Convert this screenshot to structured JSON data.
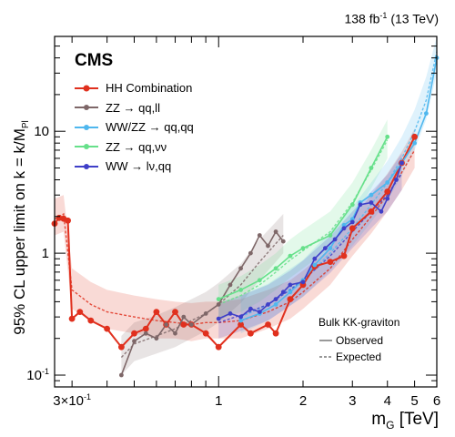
{
  "header": {
    "luminosity": "138 fb",
    "lumi_exponent": "-1",
    "energy": "(13 TeV)"
  },
  "brand": "CMS",
  "axis_labels": {
    "y_main": "95% CL upper limit on k",
    "y_tilde": "~",
    "y_rest": " = k/M",
    "y_sub": "Pl",
    "x_main": "m",
    "x_sub": "G",
    "x_unit": " [TeV]"
  },
  "y_ticks": [
    {
      "value": 0.1,
      "label": "10",
      "exp": "-1"
    },
    {
      "value": 1,
      "label": "1",
      "exp": ""
    },
    {
      "value": 10,
      "label": "10",
      "exp": ""
    }
  ],
  "x_ticks": [
    {
      "value": 0.3,
      "label": "3×10",
      "exp": "-1"
    },
    {
      "value": 1,
      "label": "1",
      "exp": ""
    },
    {
      "value": 2,
      "label": "2",
      "exp": ""
    },
    {
      "value": 3,
      "label": "3",
      "exp": ""
    },
    {
      "value": 4,
      "label": "4",
      "exp": ""
    },
    {
      "value": 5,
      "label": "5",
      "exp": ""
    },
    {
      "value": 6,
      "label": "6",
      "exp": ""
    }
  ],
  "legend": {
    "entries": [
      {
        "label": "HH Combination",
        "color": "#e0301e",
        "marker": true
      },
      {
        "label": "ZZ → qq,ll",
        "color": "#7e6768",
        "marker": true
      },
      {
        "label": "WW/ZZ → qq,qq",
        "color": "#4fb7ee",
        "marker": true
      },
      {
        "label": "ZZ → qq,νν",
        "color": "#66e08a",
        "marker": true
      },
      {
        "label": "WW → lν,qq",
        "color": "#3f3fc8",
        "marker": true
      }
    ]
  },
  "bulk_legend": {
    "title": "Bulk KK-graviton",
    "observed": "Observed",
    "expected": "Expected"
  },
  "chart_data": {
    "type": "line",
    "xscale": "log",
    "yscale": "log",
    "xlim": [
      0.26,
      6.0
    ],
    "ylim": [
      0.08,
      60
    ],
    "series": [
      {
        "name": "HH Combination",
        "color": "#e0301e",
        "observed": [
          [
            0.26,
            1.75
          ],
          [
            0.27,
            1.95
          ],
          [
            0.28,
            1.92
          ],
          [
            0.29,
            1.85
          ],
          [
            0.3,
            0.29
          ],
          [
            0.32,
            0.33
          ],
          [
            0.35,
            0.28
          ],
          [
            0.4,
            0.24
          ],
          [
            0.45,
            0.17
          ],
          [
            0.5,
            0.22
          ],
          [
            0.55,
            0.24
          ],
          [
            0.6,
            0.33
          ],
          [
            0.65,
            0.26
          ],
          [
            0.7,
            0.33
          ],
          [
            0.75,
            0.26
          ],
          [
            0.8,
            0.26
          ],
          [
            0.9,
            0.22
          ],
          [
            1.0,
            0.17
          ],
          [
            1.2,
            0.26
          ],
          [
            1.3,
            0.22
          ],
          [
            1.5,
            0.26
          ],
          [
            1.6,
            0.22
          ],
          [
            1.8,
            0.42
          ],
          [
            2.0,
            0.55
          ],
          [
            2.2,
            0.78
          ],
          [
            2.5,
            0.85
          ],
          [
            2.8,
            0.95
          ],
          [
            3.0,
            1.6
          ],
          [
            3.5,
            2.2
          ],
          [
            4.0,
            3.2
          ],
          [
            4.5,
            5.5
          ],
          [
            5.0,
            9.0
          ]
        ],
        "expected": [
          [
            0.26,
            1.9
          ],
          [
            0.28,
            2.1
          ],
          [
            0.3,
            0.5
          ],
          [
            0.35,
            0.38
          ],
          [
            0.4,
            0.33
          ],
          [
            0.5,
            0.3
          ],
          [
            0.6,
            0.28
          ],
          [
            0.7,
            0.27
          ],
          [
            0.8,
            0.26
          ],
          [
            0.9,
            0.27
          ],
          [
            1.0,
            0.27
          ],
          [
            1.2,
            0.28
          ],
          [
            1.5,
            0.33
          ],
          [
            1.8,
            0.4
          ],
          [
            2.0,
            0.48
          ],
          [
            2.5,
            0.75
          ],
          [
            3.0,
            1.3
          ],
          [
            3.5,
            2.0
          ],
          [
            4.0,
            3.0
          ],
          [
            4.5,
            4.6
          ],
          [
            5.0,
            7.0
          ]
        ],
        "band": [
          [
            0.26,
            1.4,
            2.8
          ],
          [
            0.28,
            1.5,
            3.0
          ],
          [
            0.3,
            0.35,
            0.75
          ],
          [
            0.35,
            0.28,
            0.58
          ],
          [
            0.4,
            0.24,
            0.5
          ],
          [
            0.5,
            0.22,
            0.45
          ],
          [
            0.6,
            0.2,
            0.42
          ],
          [
            0.7,
            0.2,
            0.4
          ],
          [
            0.8,
            0.19,
            0.39
          ],
          [
            0.9,
            0.2,
            0.4
          ],
          [
            1.0,
            0.2,
            0.4
          ],
          [
            1.2,
            0.2,
            0.42
          ],
          [
            1.5,
            0.24,
            0.5
          ],
          [
            1.8,
            0.29,
            0.6
          ],
          [
            2.0,
            0.35,
            0.72
          ],
          [
            2.5,
            0.55,
            1.1
          ],
          [
            3.0,
            0.95,
            1.95
          ],
          [
            3.5,
            1.45,
            3.0
          ],
          [
            4.0,
            2.2,
            4.5
          ],
          [
            4.5,
            3.3,
            6.8
          ],
          [
            5.0,
            5.0,
            10.5
          ]
        ]
      },
      {
        "name": "ZZ → qq,ll",
        "color": "#7e6768",
        "observed": [
          [
            0.45,
            0.1
          ],
          [
            0.5,
            0.19
          ],
          [
            0.55,
            0.22
          ],
          [
            0.6,
            0.2
          ],
          [
            0.65,
            0.26
          ],
          [
            0.7,
            0.22
          ],
          [
            0.75,
            0.3
          ],
          [
            0.8,
            0.26
          ],
          [
            0.9,
            0.32
          ],
          [
            1.0,
            0.38
          ],
          [
            1.1,
            0.55
          ],
          [
            1.2,
            0.75
          ],
          [
            1.3,
            1.0
          ],
          [
            1.4,
            1.4
          ],
          [
            1.5,
            1.15
          ],
          [
            1.6,
            1.5
          ],
          [
            1.7,
            1.25
          ]
        ],
        "expected": [
          [
            0.45,
            0.14
          ],
          [
            0.5,
            0.18
          ],
          [
            0.6,
            0.21
          ],
          [
            0.7,
            0.24
          ],
          [
            0.8,
            0.28
          ],
          [
            0.9,
            0.32
          ],
          [
            1.0,
            0.38
          ],
          [
            1.2,
            0.55
          ],
          [
            1.4,
            0.85
          ],
          [
            1.6,
            1.2
          ],
          [
            1.7,
            1.4
          ]
        ],
        "band": [
          [
            0.45,
            0.1,
            0.21
          ],
          [
            0.5,
            0.13,
            0.27
          ],
          [
            0.6,
            0.15,
            0.31
          ],
          [
            0.7,
            0.17,
            0.36
          ],
          [
            0.8,
            0.2,
            0.42
          ],
          [
            0.9,
            0.23,
            0.48
          ],
          [
            1.0,
            0.27,
            0.57
          ],
          [
            1.2,
            0.39,
            0.82
          ],
          [
            1.4,
            0.6,
            1.3
          ],
          [
            1.6,
            0.85,
            1.8
          ],
          [
            1.7,
            1.0,
            2.1
          ]
        ]
      },
      {
        "name": "WW/ZZ → qq,qq",
        "color": "#4fb7ee",
        "observed": [
          [
            1.2,
            0.28
          ],
          [
            1.4,
            0.32
          ],
          [
            1.6,
            0.38
          ],
          [
            1.8,
            0.48
          ],
          [
            2.0,
            0.6
          ],
          [
            2.2,
            0.8
          ],
          [
            2.5,
            1.1
          ],
          [
            2.8,
            1.7
          ],
          [
            3.0,
            1.9
          ],
          [
            3.2,
            2.6
          ],
          [
            3.5,
            3.0
          ],
          [
            4.0,
            3.8
          ],
          [
            4.5,
            5.5
          ],
          [
            5.0,
            8.0
          ],
          [
            5.5,
            14.0
          ],
          [
            6.0,
            40.0
          ]
        ],
        "expected": [
          [
            1.2,
            0.3
          ],
          [
            1.5,
            0.38
          ],
          [
            2.0,
            0.6
          ],
          [
            2.5,
            1.0
          ],
          [
            3.0,
            1.6
          ],
          [
            3.5,
            2.5
          ],
          [
            4.0,
            3.8
          ],
          [
            4.5,
            6.0
          ],
          [
            5.0,
            10.0
          ],
          [
            5.5,
            18.0
          ],
          [
            6.0,
            45.0
          ]
        ],
        "band": [
          [
            1.2,
            0.22,
            0.45
          ],
          [
            1.5,
            0.28,
            0.56
          ],
          [
            2.0,
            0.44,
            0.88
          ],
          [
            2.5,
            0.72,
            1.5
          ],
          [
            3.0,
            1.15,
            2.4
          ],
          [
            3.5,
            1.8,
            3.8
          ],
          [
            4.0,
            2.7,
            5.7
          ],
          [
            4.5,
            4.3,
            9.0
          ],
          [
            5.0,
            7.0,
            15.0
          ],
          [
            5.5,
            12.5,
            28.0
          ],
          [
            6.0,
            30.0,
            70.0
          ]
        ]
      },
      {
        "name": "ZZ → qq,νν",
        "color": "#66e08a",
        "observed": [
          [
            1.0,
            0.42
          ],
          [
            1.2,
            0.5
          ],
          [
            1.4,
            0.6
          ],
          [
            1.6,
            0.75
          ],
          [
            1.8,
            0.95
          ],
          [
            2.0,
            1.1
          ],
          [
            2.5,
            1.4
          ],
          [
            3.0,
            2.5
          ],
          [
            3.5,
            5.0
          ],
          [
            4.0,
            9.0
          ]
        ],
        "expected": [
          [
            1.0,
            0.38
          ],
          [
            1.2,
            0.45
          ],
          [
            1.4,
            0.55
          ],
          [
            1.6,
            0.7
          ],
          [
            1.8,
            0.88
          ],
          [
            2.0,
            1.05
          ],
          [
            2.5,
            1.5
          ],
          [
            3.0,
            2.6
          ],
          [
            3.5,
            4.8
          ],
          [
            4.0,
            8.5
          ]
        ],
        "band": [
          [
            1.0,
            0.28,
            0.55
          ],
          [
            1.2,
            0.33,
            0.65
          ],
          [
            1.4,
            0.4,
            0.8
          ],
          [
            1.6,
            0.5,
            1.0
          ],
          [
            1.8,
            0.63,
            1.3
          ],
          [
            2.0,
            0.75,
            1.55
          ],
          [
            2.5,
            1.1,
            2.2
          ],
          [
            3.0,
            1.9,
            3.8
          ],
          [
            3.5,
            3.4,
            7.0
          ],
          [
            4.0,
            6.0,
            12.5
          ]
        ]
      },
      {
        "name": "WW → lν,qq",
        "color": "#3f3fc8",
        "observed": [
          [
            1.0,
            0.29
          ],
          [
            1.1,
            0.32
          ],
          [
            1.2,
            0.3
          ],
          [
            1.3,
            0.35
          ],
          [
            1.4,
            0.33
          ],
          [
            1.5,
            0.38
          ],
          [
            1.6,
            0.42
          ],
          [
            1.7,
            0.48
          ],
          [
            1.8,
            0.55
          ],
          [
            2.0,
            0.58
          ],
          [
            2.2,
            0.9
          ],
          [
            2.4,
            1.1
          ],
          [
            2.6,
            1.3
          ],
          [
            2.8,
            1.6
          ],
          [
            3.0,
            1.8
          ],
          [
            3.2,
            2.5
          ],
          [
            3.5,
            2.6
          ],
          [
            3.8,
            2.2
          ],
          [
            4.0,
            2.8
          ],
          [
            4.3,
            4.0
          ],
          [
            4.5,
            5.5
          ]
        ],
        "expected": [
          [
            1.0,
            0.27
          ],
          [
            1.2,
            0.31
          ],
          [
            1.5,
            0.38
          ],
          [
            1.8,
            0.5
          ],
          [
            2.0,
            0.6
          ],
          [
            2.5,
            0.95
          ],
          [
            3.0,
            1.5
          ],
          [
            3.5,
            2.2
          ],
          [
            4.0,
            3.0
          ],
          [
            4.5,
            4.5
          ]
        ],
        "band": [
          [
            1.0,
            0.2,
            0.39
          ],
          [
            1.2,
            0.23,
            0.45
          ],
          [
            1.5,
            0.28,
            0.55
          ],
          [
            1.8,
            0.37,
            0.72
          ],
          [
            2.0,
            0.44,
            0.87
          ],
          [
            2.5,
            0.69,
            1.38
          ],
          [
            3.0,
            1.1,
            2.2
          ],
          [
            3.5,
            1.6,
            3.2
          ],
          [
            4.0,
            2.2,
            4.4
          ],
          [
            4.5,
            3.3,
            6.6
          ]
        ]
      }
    ]
  }
}
